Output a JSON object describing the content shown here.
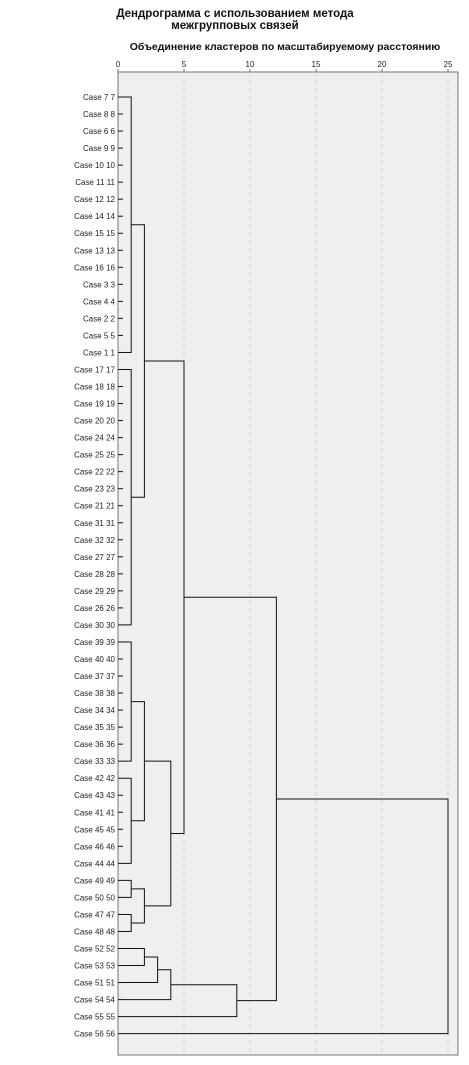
{
  "chart_data": {
    "type": "dendrogram",
    "title": "Дендрограмма с использованием метода межгрупповых связей",
    "title_lines": [
      "Дендрограмма с использованием метода",
      "межгрупповых связей"
    ],
    "subtitle": "Объединение кластеров по масштабируемому расстоянию",
    "xlim": [
      0,
      25
    ],
    "x_ticks": [
      0,
      5,
      10,
      15,
      20,
      25
    ],
    "grid": true,
    "leaves": [
      "Case 7 7",
      "Case 8 8",
      "Case 6 6",
      "Case 9 9",
      "Case 10 10",
      "Case 11 11",
      "Case 12 12",
      "Case 14 14",
      "Case 15 15",
      "Case 13 13",
      "Case 16 16",
      "Case 3 3",
      "Case 4 4",
      "Case 2 2",
      "Case 5 5",
      "Case 1 1",
      "Case 17 17",
      "Case 18 18",
      "Case 19 19",
      "Case 20 20",
      "Case 24 24",
      "Case 25 25",
      "Case 22 22",
      "Case 23 23",
      "Case 21 21",
      "Case 31 31",
      "Case 32 32",
      "Case 27 27",
      "Case 28 28",
      "Case 29 29",
      "Case 26 26",
      "Case 30 30",
      "Case 39 39",
      "Case 40 40",
      "Case 37 37",
      "Case 38 38",
      "Case 34 34",
      "Case 35 35",
      "Case 36 36",
      "Case 33 33",
      "Case 42 42",
      "Case 43 43",
      "Case 41 41",
      "Case 45 45",
      "Case 46 46",
      "Case 44 44",
      "Case 49 49",
      "Case 50 50",
      "Case 47 47",
      "Case 48 48",
      "Case 52 52",
      "Case 53 53",
      "Case 51 51",
      "Case 54 54",
      "Case 55 55",
      "Case 56 56"
    ],
    "merges": [
      {
        "a": "L0",
        "b": "L15",
        "height": 1.0
      },
      {
        "a": "L16",
        "b": "L31",
        "height": 1.0
      },
      {
        "a": "L32",
        "b": "L39",
        "height": 1.0
      },
      {
        "a": "L40",
        "b": "L45",
        "height": 1.0
      },
      {
        "a": "L46",
        "b": "L47",
        "height": 1.0
      },
      {
        "a": "L48",
        "b": "L49",
        "height": 1.0
      },
      {
        "a": "L50",
        "b": "L51",
        "height": 2.0
      },
      {
        "a": "M0",
        "b": "M1",
        "height": 2.0
      },
      {
        "a": "M2",
        "b": "M3",
        "height": 2.0
      },
      {
        "a": "M4",
        "b": "M5",
        "height": 2.0
      },
      {
        "a": "M6",
        "b": "L52",
        "height": 3.0
      },
      {
        "a": "M8",
        "b": "M9",
        "height": 4.0
      },
      {
        "a": "M10",
        "b": "L53",
        "height": 4.0
      },
      {
        "a": "M7",
        "b": "M11",
        "height": 5.0
      },
      {
        "a": "M12",
        "b": "L54",
        "height": 9.0
      },
      {
        "a": "M13",
        "b": "M14",
        "height": 12.0
      },
      {
        "a": "M15",
        "b": "L55",
        "height": 25.0
      }
    ]
  }
}
